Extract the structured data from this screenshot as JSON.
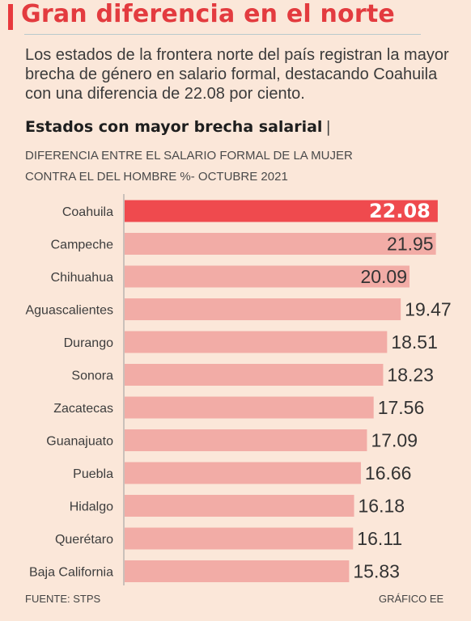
{
  "header": {
    "title": "Gran diferencia en el norte",
    "subtitle": "Los estados de la frontera norte del país registran la mayor brecha de género en salario formal, destacando Coahuila con una diferencia de 22.08 por ciento."
  },
  "chart_data": {
    "type": "bar",
    "orientation": "horizontal",
    "title": "Estados con mayor brecha salarial",
    "subtitle_line1": "DIFERENCIA ENTRE EL SALARIO FORMAL DE LA MUJER",
    "subtitle_line2": "CONTRA EL DEL HOMBRE %- OCTUBRE 2021",
    "categories": [
      "Coahuila",
      "Campeche",
      "Chihuahua",
      "Aguascalientes",
      "Durango",
      "Sonora",
      "Zacatecas",
      "Guanajuato",
      "Puebla",
      "Hidalgo",
      "Querétaro",
      "Baja California"
    ],
    "values": [
      22.08,
      21.95,
      20.09,
      19.47,
      18.51,
      18.23,
      17.56,
      17.09,
      16.66,
      16.18,
      16.11,
      15.83
    ],
    "value_labels": [
      "22.08",
      "21.95",
      "20.09",
      "19.47",
      "18.51",
      "18.23",
      "17.56",
      "17.09",
      "16.66",
      "16.18",
      "16.11",
      "15.83"
    ],
    "highlight_index": 0,
    "colors": {
      "highlight": "#ef4a4e",
      "bar": "#f2aca6"
    },
    "xlim": [
      0,
      22.2
    ],
    "grid": false
  },
  "footer": {
    "source": "FUENTE: STPS",
    "credit": "GRÁFICO EE"
  }
}
